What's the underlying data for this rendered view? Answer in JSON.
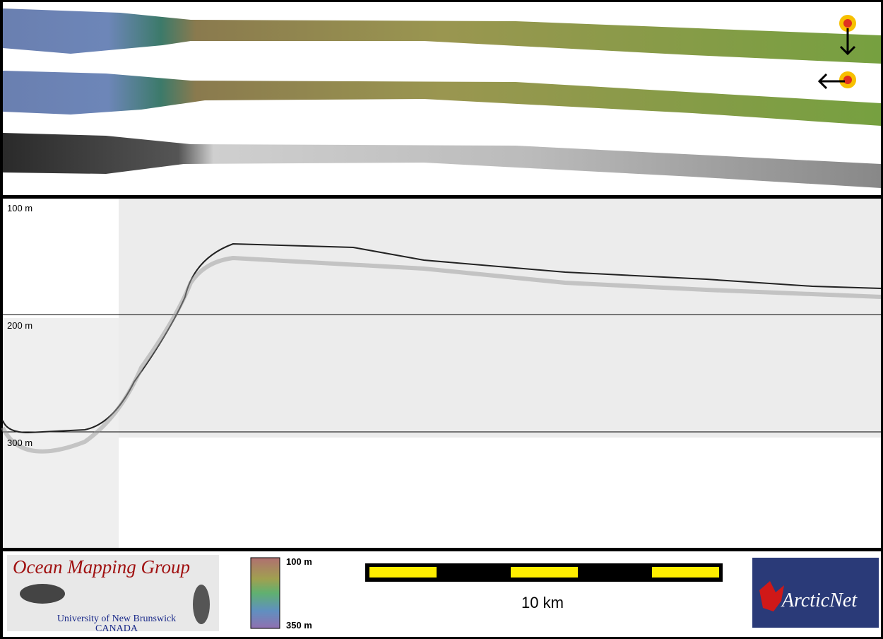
{
  "profile": {
    "depth_labels": [
      "100 m",
      "200 m",
      "300 m"
    ]
  },
  "colorbar": {
    "top_label": "100 m",
    "bottom_label": "350 m"
  },
  "scale_bar": {
    "label": "10 km"
  },
  "logos": {
    "omg_title": "Ocean Mapping Group",
    "omg_university": "University of New Brunswick",
    "omg_country": "CANADA",
    "arcticnet": "ArcticNet"
  }
}
